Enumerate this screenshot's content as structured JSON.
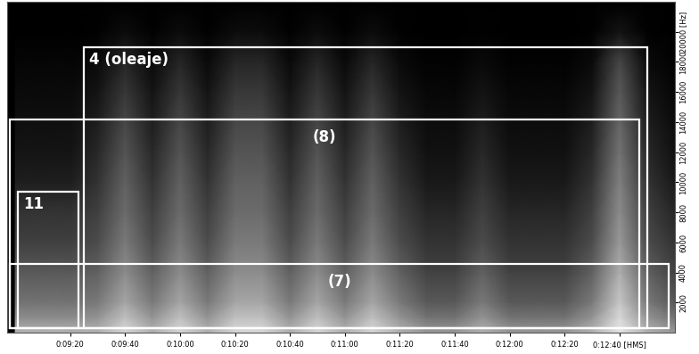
{
  "chart_data": {
    "type": "spectrogram",
    "grid": false,
    "xlim": [
      537,
      780
    ],
    "xticks": [
      {
        "value": 560,
        "label": "0:09:20"
      },
      {
        "value": 580,
        "label": "0:09:40"
      },
      {
        "value": 600,
        "label": "0:10:00"
      },
      {
        "value": 620,
        "label": "0:10:20"
      },
      {
        "value": 640,
        "label": "0:10:40"
      },
      {
        "value": 660,
        "label": "0:11:00"
      },
      {
        "value": 680,
        "label": "0:11:20"
      },
      {
        "value": 700,
        "label": "0:11:40"
      },
      {
        "value": 720,
        "label": "0:12:00"
      },
      {
        "value": 740,
        "label": "0:12:20"
      },
      {
        "value": 760,
        "label": "0:12:40 [HMS]"
      }
    ],
    "ylim": [
      0,
      22000
    ],
    "yticks": [
      2000,
      4000,
      6000,
      8000,
      10000,
      12000,
      14000,
      16000,
      18000,
      {
        "value": 20000,
        "label": "20000 [Hz]"
      }
    ],
    "x": [
      540,
      550,
      560,
      570,
      580,
      590,
      600,
      610,
      620,
      630,
      640,
      650,
      660,
      670,
      680,
      690,
      700,
      710,
      720,
      730,
      740,
      750,
      760,
      770,
      780
    ],
    "y": [
      0,
      1000,
      2000,
      4000,
      6000,
      8000,
      10000,
      12000,
      14000,
      16000,
      18000,
      20000,
      22000
    ],
    "value_range": [
      0,
      100
    ],
    "cells": [
      [
        70,
        55,
        45,
        35,
        25,
        20,
        12,
        8,
        6,
        4,
        2,
        0,
        0
      ],
      [
        70,
        55,
        45,
        35,
        25,
        20,
        12,
        8,
        6,
        4,
        2,
        0,
        0
      ],
      [
        70,
        55,
        45,
        35,
        25,
        20,
        12,
        8,
        6,
        4,
        2,
        0,
        0
      ],
      [
        70,
        58,
        48,
        38,
        30,
        25,
        20,
        16,
        12,
        8,
        4,
        1,
        0
      ],
      [
        85,
        75,
        65,
        55,
        48,
        42,
        38,
        33,
        28,
        22,
        15,
        5,
        0
      ],
      [
        70,
        58,
        48,
        38,
        30,
        25,
        20,
        16,
        12,
        8,
        4,
        1,
        0
      ],
      [
        85,
        75,
        65,
        55,
        48,
        42,
        38,
        33,
        28,
        22,
        15,
        5,
        0
      ],
      [
        70,
        58,
        48,
        38,
        30,
        25,
        20,
        16,
        12,
        8,
        4,
        1,
        0
      ],
      [
        85,
        75,
        65,
        55,
        48,
        42,
        38,
        33,
        28,
        22,
        15,
        5,
        0
      ],
      [
        85,
        75,
        65,
        55,
        48,
        42,
        38,
        33,
        28,
        22,
        15,
        5,
        0
      ],
      [
        70,
        58,
        48,
        38,
        30,
        25,
        20,
        16,
        12,
        8,
        4,
        1,
        0
      ],
      [
        85,
        75,
        65,
        55,
        48,
        42,
        38,
        33,
        28,
        22,
        15,
        5,
        0
      ],
      [
        70,
        58,
        48,
        38,
        30,
        25,
        20,
        16,
        12,
        8,
        4,
        1,
        0
      ],
      [
        85,
        75,
        65,
        55,
        48,
        42,
        38,
        33,
        28,
        22,
        15,
        5,
        0
      ],
      [
        70,
        58,
        48,
        38,
        30,
        25,
        20,
        16,
        12,
        8,
        4,
        1,
        0
      ],
      [
        60,
        45,
        35,
        26,
        20,
        15,
        10,
        7,
        5,
        3,
        1,
        0,
        0
      ],
      [
        60,
        45,
        35,
        26,
        20,
        15,
        10,
        7,
        5,
        3,
        1,
        0,
        0
      ],
      [
        70,
        58,
        48,
        38,
        30,
        25,
        20,
        16,
        12,
        8,
        4,
        1,
        0
      ],
      [
        60,
        45,
        35,
        26,
        20,
        15,
        10,
        7,
        5,
        3,
        1,
        0,
        0
      ],
      [
        60,
        45,
        35,
        26,
        20,
        15,
        10,
        7,
        5,
        3,
        1,
        0,
        0
      ],
      [
        60,
        45,
        35,
        26,
        20,
        15,
        10,
        7,
        5,
        3,
        1,
        0,
        0
      ],
      [
        70,
        58,
        48,
        38,
        30,
        25,
        20,
        16,
        12,
        8,
        4,
        1,
        0
      ],
      [
        90,
        85,
        78,
        68,
        60,
        55,
        50,
        45,
        40,
        35,
        28,
        8,
        0
      ],
      [
        70,
        58,
        48,
        38,
        30,
        25,
        20,
        16,
        12,
        8,
        4,
        1,
        0
      ],
      [
        60,
        45,
        35,
        26,
        20,
        15,
        10,
        7,
        5,
        3,
        1,
        0,
        0
      ]
    ],
    "annotations": [
      {
        "text": "4 (oleaje)",
        "x": [
          565,
          770
        ],
        "y": [
          300,
          19000
        ]
      },
      {
        "text": "(8)",
        "x": [
          538,
          767
        ],
        "y": [
          300,
          14200
        ]
      },
      {
        "text": "11",
        "x": [
          541,
          563
        ],
        "y": [
          300,
          9400
        ]
      },
      {
        "text": "(7)",
        "x": [
          538,
          778
        ],
        "y": [
          300,
          4600
        ]
      }
    ]
  }
}
